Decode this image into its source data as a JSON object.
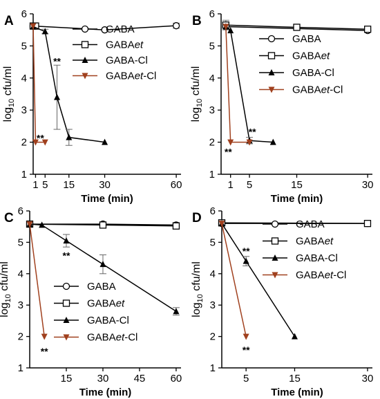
{
  "colors": {
    "black": "#000000",
    "brown": "#a0401e",
    "gray": "#888888",
    "sig_purple": "#4b1a5a"
  },
  "chart_data": [
    {
      "panel": "A",
      "type": "line",
      "xlabel": "Time (min)",
      "ylabel_main": "log",
      "ylabel_sub": "10",
      "ylabel_rest": " cfu/ml",
      "xlim": [
        0,
        62
      ],
      "ylim": [
        1,
        6
      ],
      "xticks": [
        1,
        5,
        15,
        30,
        60
      ],
      "yticks": [
        1,
        2,
        3,
        4,
        5,
        6
      ],
      "legend_position": "top-right",
      "series": [
        {
          "name_main": "GABA",
          "name_it": "",
          "name_tail": "",
          "marker": "circle-open",
          "color": "#000000",
          "points": [
            [
              0,
              5.62
            ],
            [
              30,
              5.5
            ],
            [
              60,
              5.63
            ]
          ],
          "err": [
            0,
            0,
            0.08
          ]
        },
        {
          "name_main": "GABA",
          "name_it": "et",
          "name_tail": "",
          "marker": "square-open",
          "color": "#000000",
          "points": [
            [
              0,
              5.62
            ],
            [
              1,
              5.62
            ]
          ],
          "err": [
            0,
            0
          ]
        },
        {
          "name_main": "GABA-Cl",
          "name_it": "",
          "name_tail": "",
          "marker": "triangle-up",
          "color": "#000000",
          "points": [
            [
              0,
              5.6
            ],
            [
              5,
              5.45
            ],
            [
              10,
              3.4
            ],
            [
              15,
              2.15
            ],
            [
              30,
              2.0
            ]
          ],
          "err": [
            0,
            0.07,
            1.0,
            0.25,
            0
          ]
        },
        {
          "name_main": "GABA",
          "name_it": "et",
          "name_tail": "-Cl",
          "marker": "triangle-down",
          "color": "#a0401e",
          "points": [
            [
              0,
              5.62
            ],
            [
              1,
              2.0
            ],
            [
              5,
              2.0
            ]
          ],
          "err": [
            0,
            0,
            0
          ]
        }
      ],
      "annotations": [
        {
          "text": "**",
          "x": 10,
          "y": 4.55,
          "color": "#000000"
        },
        {
          "text": "**",
          "x": 3,
          "y": 2.15,
          "color": "#4b1a5a"
        }
      ]
    },
    {
      "panel": "B",
      "type": "line",
      "xlabel": "Time (min)",
      "ylabel_main": "log",
      "ylabel_sub": "10",
      "ylabel_rest": " cfu/ml",
      "xlim": [
        -1,
        31
      ],
      "ylim": [
        1,
        6
      ],
      "xticks": [
        1,
        5,
        15,
        30
      ],
      "yticks": [
        1,
        2,
        3,
        4,
        5,
        6
      ],
      "legend_position": "top-right",
      "series": [
        {
          "name_main": "GABA",
          "name_it": "",
          "name_tail": "",
          "marker": "circle-open",
          "color": "#000000",
          "points": [
            [
              0,
              5.6
            ],
            [
              30,
              5.48
            ]
          ],
          "err": [
            0,
            0
          ]
        },
        {
          "name_main": "GABA",
          "name_it": "et",
          "name_tail": "",
          "marker": "square-open",
          "color": "#000000",
          "points": [
            [
              0,
              5.65
            ],
            [
              15,
              5.58
            ],
            [
              30,
              5.52
            ]
          ],
          "err": [
            0.15,
            0,
            0
          ]
        },
        {
          "name_main": "GABA-Cl",
          "name_it": "",
          "name_tail": "",
          "marker": "triangle-up",
          "color": "#000000",
          "points": [
            [
              0,
              5.6
            ],
            [
              1,
              5.48
            ],
            [
              5,
              2.05
            ],
            [
              10,
              2.0
            ]
          ],
          "err": [
            0,
            0,
            0.1,
            0
          ]
        },
        {
          "name_main": "GABA",
          "name_it": "et",
          "name_tail": "-Cl",
          "marker": "triangle-down",
          "color": "#a0401e",
          "points": [
            [
              0,
              5.6
            ],
            [
              1,
              2.0
            ],
            [
              5,
              2.0
            ]
          ],
          "err": [
            0,
            0,
            0
          ]
        }
      ],
      "annotations": [
        {
          "text": "**",
          "x": 5.6,
          "y": 2.35,
          "color": "#000000"
        },
        {
          "text": "**",
          "x": 0.5,
          "y": 1.72,
          "color": "#4b1a5a"
        }
      ]
    },
    {
      "panel": "C",
      "type": "line",
      "xlabel": "Time (min)",
      "ylabel_main": "log",
      "ylabel_sub": "10",
      "ylabel_rest": " cfu/ml",
      "xlim": [
        0,
        62
      ],
      "ylim": [
        1,
        6
      ],
      "xticks": [
        15,
        30,
        45,
        60
      ],
      "yticks": [
        1,
        2,
        3,
        4,
        5,
        6
      ],
      "legend_position": "bottom-left",
      "series": [
        {
          "name_main": "GABA",
          "name_it": "",
          "name_tail": "",
          "marker": "circle-open",
          "color": "#000000",
          "points": [
            [
              0,
              5.58
            ],
            [
              30,
              5.58
            ],
            [
              60,
              5.55
            ]
          ],
          "err": [
            0,
            0.05,
            0.08
          ]
        },
        {
          "name_main": "GABA",
          "name_it": "et",
          "name_tail": "",
          "marker": "square-open",
          "color": "#000000",
          "points": [
            [
              0,
              5.58
            ],
            [
              30,
              5.55
            ],
            [
              60,
              5.52
            ]
          ],
          "err": [
            0,
            0,
            0
          ]
        },
        {
          "name_main": "GABA-Cl",
          "name_it": "",
          "name_tail": "",
          "marker": "triangle-up",
          "color": "#000000",
          "points": [
            [
              0,
              5.58
            ],
            [
              5,
              5.55
            ],
            [
              15,
              5.05
            ],
            [
              30,
              4.3
            ],
            [
              60,
              2.8
            ]
          ],
          "err": [
            0,
            0,
            0.2,
            0.3,
            0.12
          ]
        },
        {
          "name_main": "GABA",
          "name_it": "et",
          "name_tail": "-Cl",
          "marker": "triangle-down",
          "color": "#a0401e",
          "points": [
            [
              0,
              5.58
            ],
            [
              6,
              2.0
            ]
          ],
          "err": [
            0,
            0
          ]
        }
      ],
      "annotations": [
        {
          "text": "**",
          "x": 15,
          "y": 4.6,
          "color": "#000000"
        },
        {
          "text": "**",
          "x": 6,
          "y": 1.55,
          "color": "#000000"
        }
      ]
    },
    {
      "panel": "D",
      "type": "line",
      "xlabel": "Time (min)",
      "ylabel_main": "log",
      "ylabel_sub": "10",
      "ylabel_rest": " cfu/ml",
      "xlim": [
        0,
        31
      ],
      "ylim": [
        1,
        6
      ],
      "xticks": [
        5,
        15,
        30
      ],
      "yticks": [
        1,
        2,
        3,
        4,
        5,
        6
      ],
      "legend_position": "top-right",
      "series": [
        {
          "name_main": "GABA",
          "name_it": "",
          "name_tail": "",
          "marker": "circle-open",
          "color": "#000000",
          "points": [
            [
              0,
              5.6
            ],
            [
              30,
              5.6
            ]
          ],
          "err": [
            0,
            0
          ]
        },
        {
          "name_main": "GABA",
          "name_it": "et",
          "name_tail": "",
          "marker": "square-open",
          "color": "#000000",
          "points": [
            [
              0,
              5.62
            ],
            [
              30,
              5.6
            ]
          ],
          "err": [
            0,
            0
          ]
        },
        {
          "name_main": "GABA-Cl",
          "name_it": "",
          "name_tail": "",
          "marker": "triangle-up",
          "color": "#000000",
          "points": [
            [
              0,
              5.6
            ],
            [
              5,
              4.4
            ],
            [
              15,
              2.0
            ]
          ],
          "err": [
            0,
            0.15,
            0
          ]
        },
        {
          "name_main": "GABA",
          "name_it": "et",
          "name_tail": "-Cl",
          "marker": "triangle-down",
          "color": "#a0401e",
          "points": [
            [
              0,
              5.6
            ],
            [
              5,
              2.0
            ]
          ],
          "err": [
            0,
            0
          ]
        }
      ],
      "annotations": [
        {
          "text": "**",
          "x": 5,
          "y": 4.75,
          "color": "#000000"
        },
        {
          "text": "**",
          "x": 5,
          "y": 1.6,
          "color": "#000000"
        }
      ]
    }
  ]
}
